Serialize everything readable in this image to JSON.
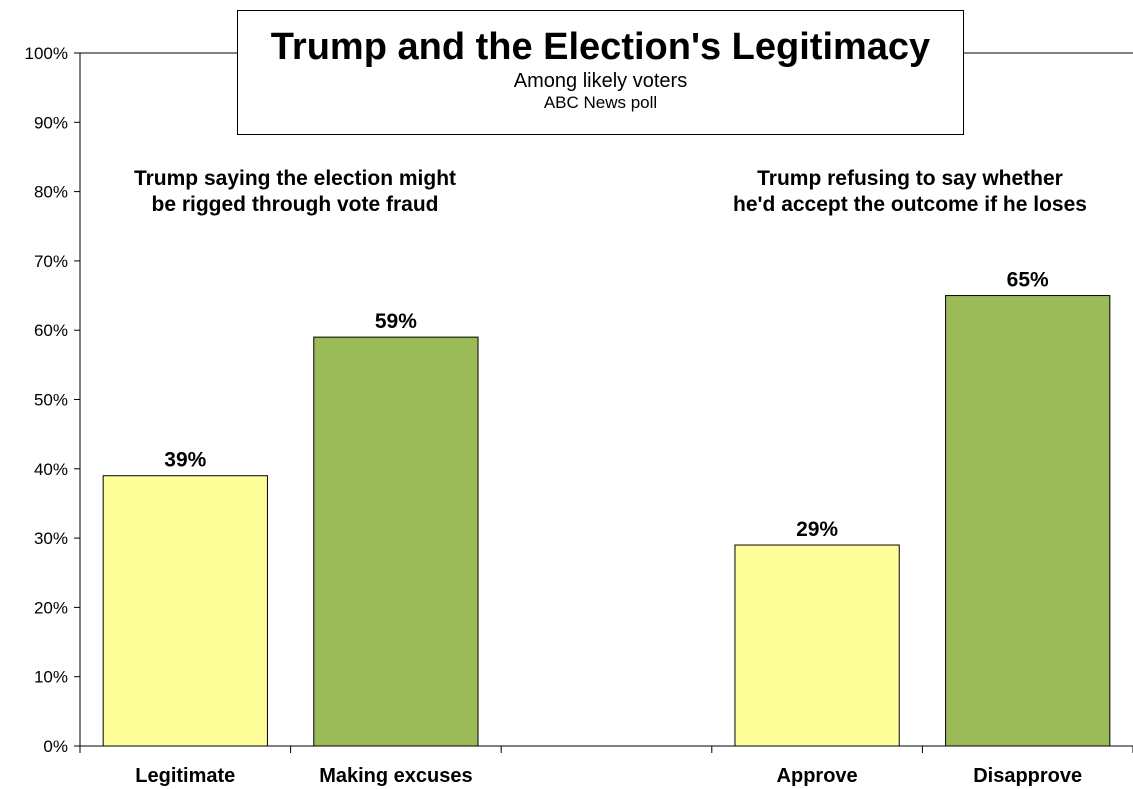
{
  "chart_data": {
    "type": "bar",
    "title": "Trump and the Election's Legitimacy",
    "subtitle": "Among likely voters",
    "source": "ABC News poll",
    "categories": [
      "Legitimate",
      "Making excuses",
      "",
      "Approve",
      "Disapprove"
    ],
    "values": [
      39,
      59,
      null,
      29,
      65
    ],
    "data_labels": [
      "39%",
      "59%",
      "",
      "29%",
      "65%"
    ],
    "bar_colors": [
      "#ffff99",
      "#9bbb59",
      "",
      "#ffff99",
      "#9bbb59"
    ],
    "groups": [
      {
        "label": "Trump saying the election might\nbe rigged through vote fraud"
      },
      {
        "label": "Trump refusing to say whether\nhe'd accept the outcome if he loses"
      }
    ],
    "yticks": [
      "0%",
      "10%",
      "20%",
      "30%",
      "40%",
      "50%",
      "60%",
      "70%",
      "80%",
      "90%",
      "100%"
    ],
    "ylim": [
      0,
      100
    ],
    "grid": false,
    "xlabel": "",
    "ylabel": ""
  }
}
